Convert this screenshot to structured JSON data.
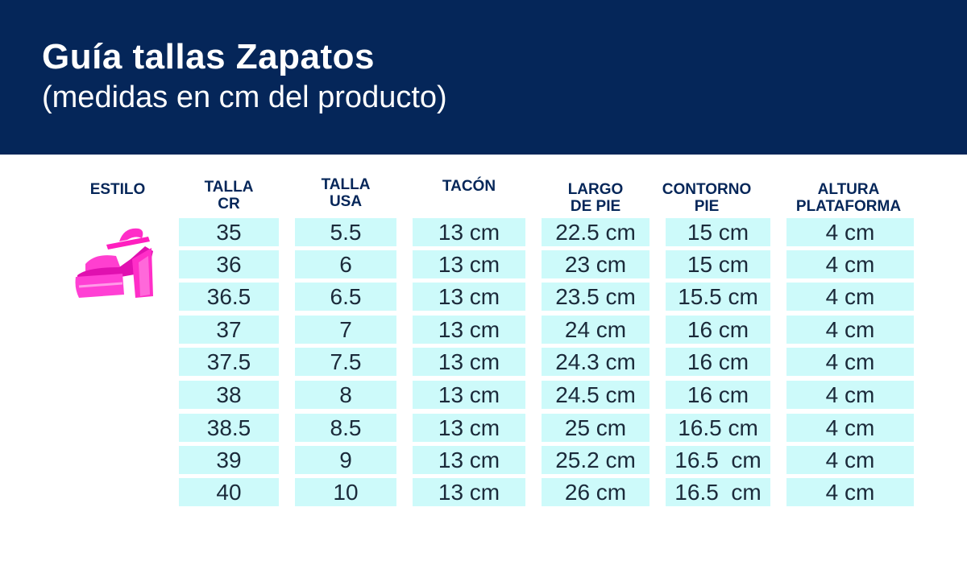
{
  "header": {
    "title": "Guía tallas Zapatos",
    "subtitle": "(medidas en cm del producto)"
  },
  "colors": {
    "header_bg": "#052659",
    "cell_bg": "#cdfafa",
    "shoe": "#ff33cc"
  },
  "columns": {
    "estilo": "ESTILO",
    "talla_cr": [
      "TALLA",
      "CR"
    ],
    "talla_usa": [
      "TALLA",
      "USA"
    ],
    "tacon": "TACÓN",
    "largo_pie": [
      "LARGO",
      "DE PIE"
    ],
    "contorno_pie": [
      "CONTORNO",
      "PIE"
    ],
    "altura_plataforma": [
      "ALTURA",
      "PLATAFORMA"
    ]
  },
  "style_image": "pink-platform-sandal-icon",
  "rows": [
    [
      "35",
      "5.5",
      "13 cm",
      "22.5 cm",
      "15 cm",
      "4 cm"
    ],
    [
      "36",
      "6",
      "13 cm",
      "23 cm",
      "15 cm",
      "4 cm"
    ],
    [
      "36.5",
      "6.5",
      "13 cm",
      "23.5 cm",
      "15.5 cm",
      "4 cm"
    ],
    [
      "37",
      "7",
      "13 cm",
      "24 cm",
      "16 cm",
      "4 cm"
    ],
    [
      "37.5",
      "7.5",
      "13 cm",
      "24.3 cm",
      "16 cm",
      "4 cm"
    ],
    [
      "38",
      "8",
      "13 cm",
      "24.5 cm",
      "16 cm",
      "4 cm"
    ],
    [
      "38.5",
      "8.5",
      "13 cm",
      "25 cm",
      "16.5 cm",
      "4 cm"
    ],
    [
      "39",
      "9",
      "13 cm",
      "25.2 cm",
      "16.5  cm",
      "4 cm"
    ],
    [
      "40",
      "10",
      "13 cm",
      "26 cm",
      "16.5  cm",
      "4 cm"
    ]
  ]
}
